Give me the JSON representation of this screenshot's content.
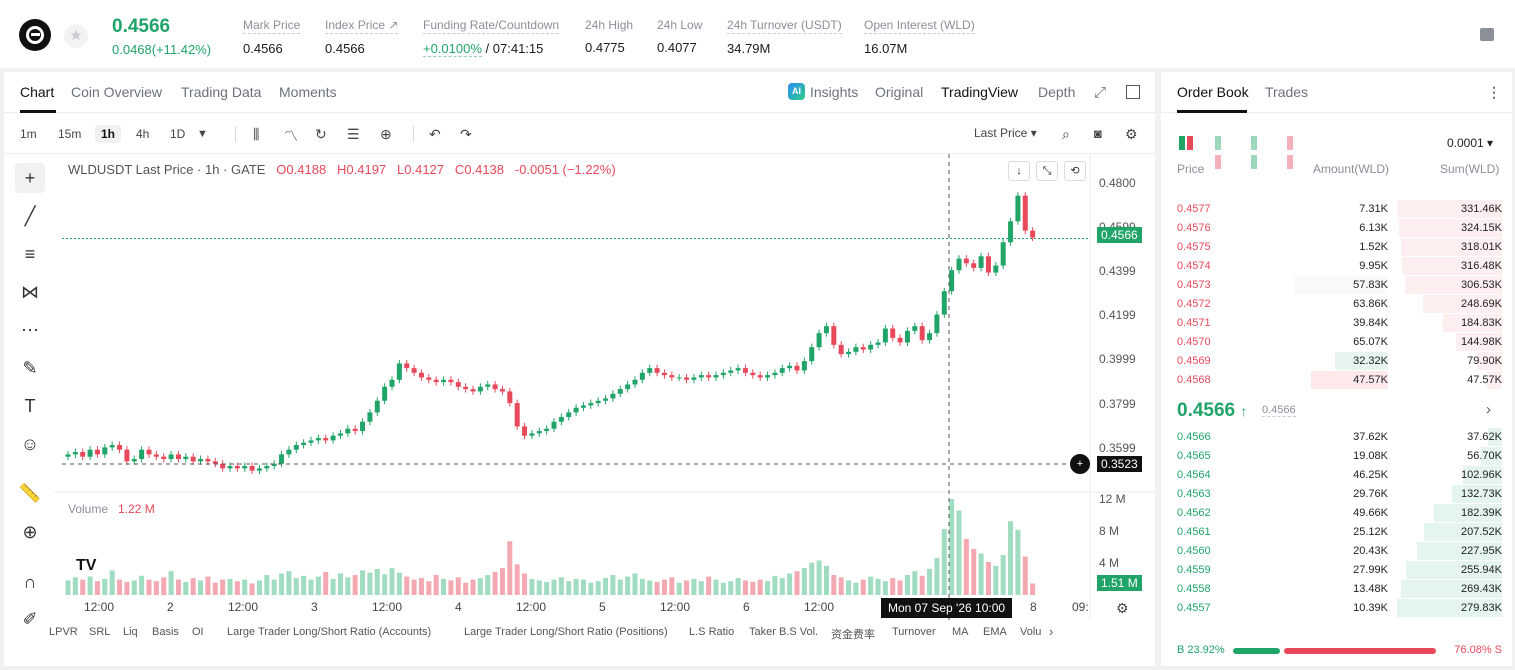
{
  "header": {
    "price": "0.4566",
    "change": "0.0468(+11.42%)",
    "stats": [
      {
        "label": "Mark Price",
        "value": "0.4566"
      },
      {
        "label": "Index Price ↗",
        "value": "0.4566"
      },
      {
        "label": "Funding Rate/Countdown",
        "value_a": "+0.0100%",
        "value_b": "/ 07:41:15"
      },
      {
        "label": "24h High",
        "value": "0.4775"
      },
      {
        "label": "24h Low",
        "value": "0.4077"
      },
      {
        "label": "24h Turnover (USDT)",
        "value": "34.79M"
      },
      {
        "label": "Open Interest (WLD)",
        "value": "16.07M"
      }
    ]
  },
  "chart_tabs": {
    "chart": "Chart",
    "coin_overview": "Coin Overview",
    "trading_data": "Trading Data",
    "moments": "Moments",
    "insights": "Insights",
    "original": "Original",
    "tradingview": "TradingView",
    "depth": "Depth",
    "ai_badge": "AI"
  },
  "toolbar": {
    "intervals": [
      "1m",
      "15m",
      "1h",
      "4h",
      "1D"
    ],
    "price_type": "Last Price ▾"
  },
  "legend": {
    "symbol": "WLDUSDT Last Price · 1h · GATE",
    "o": "O0.4188",
    "h": "H0.4197",
    "l": "L0.4127",
    "c": "C0.4138",
    "chg": "-0.0051 (−1.22%)"
  },
  "volume": {
    "label": "Volume",
    "value": "1.22 M"
  },
  "y_axis": [
    "0.4800",
    "0.4599",
    "0.4399",
    "0.4199",
    "0.3999",
    "0.3799",
    "0.3599"
  ],
  "price_tags": {
    "last": "0.4566",
    "cursor": "0.3523",
    "vol": "1.51 M"
  },
  "vol_axis": [
    "12 M",
    "8 M",
    "4 M"
  ],
  "x_axis": [
    "12:00",
    "2",
    "12:00",
    "3",
    "12:00",
    "4",
    "12:00",
    "5",
    "12:00",
    "6",
    "12:00",
    "8",
    "09:"
  ],
  "crosshair_time": "Mon 07 Sep '26   10:00",
  "indicators": [
    "LPVR",
    "SRL",
    "Liq",
    "Basis",
    "OI",
    "Large Trader Long/Short Ratio (Accounts)",
    "Large Trader Long/Short Ratio (Positions)",
    "L.S Ratio",
    "Taker B.S Vol.",
    "资金费率",
    "Turnover",
    "MA",
    "EMA",
    "Volu"
  ],
  "orderbook": {
    "tabs": [
      "Order Book",
      "Trades"
    ],
    "precision": "0.0001 ▾",
    "headers": [
      "Price",
      "Amount(WLD)",
      "Sum(WLD)"
    ],
    "asks": [
      [
        "0.4577",
        "7.31K",
        "331.46K",
        1.0,
        0
      ],
      [
        "0.4576",
        "6.13K",
        "324.15K",
        0.98,
        0
      ],
      [
        "0.4575",
        "1.52K",
        "318.01K",
        0.96,
        0
      ],
      [
        "0.4574",
        "9.95K",
        "316.48K",
        0.95,
        0
      ],
      [
        "0.4573",
        "57.83K",
        "306.53K",
        0.92,
        0.89
      ],
      [
        "0.4572",
        "63.86K",
        "248.69K",
        0.75,
        0
      ],
      [
        "0.4571",
        "39.84K",
        "184.83K",
        0.56,
        0
      ],
      [
        "0.4570",
        "65.07K",
        "144.98K",
        0.44,
        0
      ],
      [
        "0.4569",
        "32.32K",
        "79.90K",
        0.24,
        0.5
      ],
      [
        "0.4568",
        "47.57K",
        "47.57K",
        0.14,
        0.73
      ]
    ],
    "mid_price": "0.4566",
    "mid_mark": "0.4566",
    "bids": [
      [
        "0.4566",
        "37.62K",
        "37.62K",
        0.13
      ],
      [
        "0.4565",
        "19.08K",
        "56.70K",
        0.2
      ],
      [
        "0.4564",
        "46.25K",
        "102.96K",
        0.37
      ],
      [
        "0.4563",
        "29.76K",
        "132.73K",
        0.48
      ],
      [
        "0.4562",
        "49.66K",
        "182.39K",
        0.65
      ],
      [
        "0.4561",
        "25.12K",
        "207.52K",
        0.74
      ],
      [
        "0.4560",
        "20.43K",
        "227.95K",
        0.81
      ],
      [
        "0.4559",
        "27.99K",
        "255.94K",
        0.91
      ],
      [
        "0.4558",
        "13.48K",
        "269.43K",
        0.96
      ],
      [
        "0.4557",
        "10.39K",
        "279.83K",
        1.0
      ]
    ],
    "buy_ratio": "B 23.92%",
    "sell_ratio": "76.08% S"
  },
  "colors": {
    "up": "#20a468",
    "down": "#e8495a"
  },
  "chart_data": {
    "type": "candlestick",
    "title": "WLDUSDT Last Price · 1h · GATE",
    "last_price": 0.4566,
    "ylim": [
      0.35,
      0.48
    ],
    "close": [
      0.364,
      0.365,
      0.363,
      0.366,
      0.364,
      0.367,
      0.368,
      0.366,
      0.361,
      0.362,
      0.366,
      0.364,
      0.363,
      0.362,
      0.364,
      0.362,
      0.363,
      0.361,
      0.362,
      0.361,
      0.36,
      0.358,
      0.359,
      0.358,
      0.359,
      0.357,
      0.358,
      0.359,
      0.36,
      0.364,
      0.366,
      0.368,
      0.369,
      0.37,
      0.371,
      0.37,
      0.372,
      0.373,
      0.375,
      0.374,
      0.378,
      0.382,
      0.387,
      0.393,
      0.396,
      0.403,
      0.401,
      0.399,
      0.397,
      0.396,
      0.395,
      0.396,
      0.395,
      0.393,
      0.392,
      0.391,
      0.393,
      0.394,
      0.392,
      0.391,
      0.386,
      0.376,
      0.372,
      0.373,
      0.374,
      0.375,
      0.378,
      0.38,
      0.382,
      0.384,
      0.385,
      0.386,
      0.387,
      0.388,
      0.39,
      0.392,
      0.394,
      0.396,
      0.399,
      0.401,
      0.399,
      0.398,
      0.397,
      0.397,
      0.396,
      0.397,
      0.398,
      0.397,
      0.398,
      0.399,
      0.4,
      0.401,
      0.399,
      0.398,
      0.397,
      0.398,
      0.399,
      0.401,
      0.402,
      0.4,
      0.404,
      0.41,
      0.416,
      0.419,
      0.411,
      0.407,
      0.408,
      0.41,
      0.409,
      0.411,
      0.412,
      0.418,
      0.414,
      0.412,
      0.417,
      0.419,
      0.413,
      0.416,
      0.424,
      0.434,
      0.443,
      0.448,
      0.446,
      0.444,
      0.449,
      0.442,
      0.445,
      0.455,
      0.464,
      0.475,
      0.46,
      0.457
    ],
    "volume": [
      1.9,
      2.3,
      2.0,
      2.4,
      1.8,
      2.1,
      3.2,
      2.0,
      1.7,
      1.9,
      2.5,
      2.0,
      1.8,
      2.3,
      3.1,
      2.0,
      1.7,
      2.2,
      1.9,
      2.4,
      1.6,
      2.0,
      2.1,
      1.8,
      2.0,
      1.5,
      1.9,
      2.6,
      2.0,
      2.8,
      3.1,
      2.2,
      2.5,
      2.0,
      2.4,
      3.0,
      2.1,
      2.8,
      2.3,
      2.6,
      3.2,
      2.9,
      3.4,
      2.7,
      3.5,
      2.9,
      2.4,
      2.0,
      2.2,
      1.8,
      2.6,
      2.1,
      1.9,
      2.3,
      1.6,
      2.0,
      2.2,
      2.6,
      3.0,
      3.5,
      7.0,
      4.0,
      2.8,
      2.1,
      1.9,
      1.7,
      2.0,
      2.3,
      1.8,
      2.1,
      2.0,
      1.6,
      1.8,
      2.2,
      2.6,
      2.0,
      2.4,
      2.8,
      2.1,
      1.9,
      1.7,
      2.0,
      2.3,
      1.6,
      1.9,
      2.1,
      1.8,
      2.4,
      2.0,
      1.6,
      1.8,
      2.2,
      1.9,
      1.7,
      2.0,
      1.8,
      2.5,
      2.2,
      2.8,
      3.1,
      3.5,
      4.2,
      4.5,
      3.8,
      2.6,
      2.3,
      1.9,
      1.6,
      2.0,
      2.4,
      2.1,
      1.8,
      2.2,
      1.9,
      2.6,
      3.1,
      2.5,
      3.4,
      4.8,
      8.6,
      12.5,
      11.0,
      7.3,
      6.0,
      5.4,
      4.3,
      3.8,
      5.2,
      9.6,
      8.5,
      5.0,
      1.5
    ]
  }
}
